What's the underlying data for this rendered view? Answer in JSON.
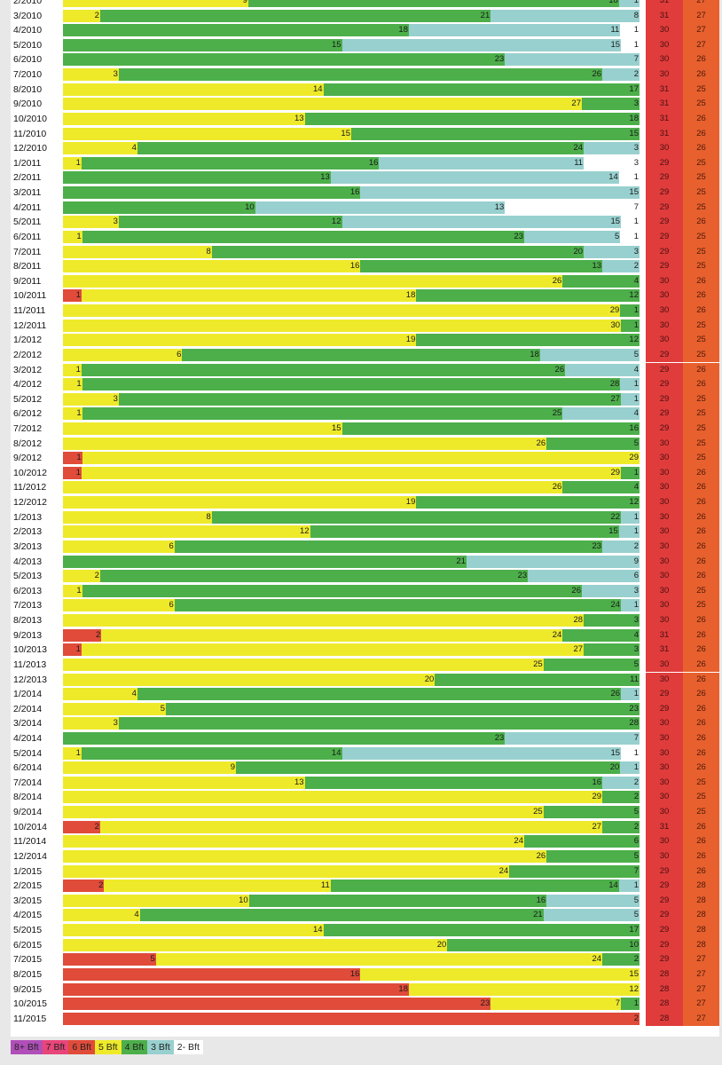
{
  "chart_data": {
    "type": "bar",
    "stacked": true,
    "orientation": "horizontal",
    "segment_order": [
      "6 Bft",
      "5 Bft",
      "4 Bft",
      "3 Bft",
      "2- Bft"
    ],
    "colors": {
      "8+ Bft": "#b04fb8",
      "7 Bft": "#e8457a",
      "6 Bft": "#e04b3a",
      "5 Bft": "#eeea2a",
      "4 Bft": "#4caf4a",
      "3 Bft": "#98d0cf",
      "2- Bft": "#ffffff",
      "col_water": "#e03c3c",
      "col_air": "#e8602e"
    },
    "legend": [
      "8+ Bft",
      "7 Bft",
      "6 Bft",
      "5 Bft",
      "4 Bft",
      "3 Bft",
      "2- Bft"
    ],
    "rows": [
      {
        "label": "2/2010",
        "days": [
          0,
          9,
          18,
          1,
          0
        ],
        "v1": "31",
        "v2": "27"
      },
      {
        "label": "3/2010",
        "days": [
          0,
          2,
          21,
          8,
          0
        ],
        "v1": "31",
        "v2": "27"
      },
      {
        "label": "4/2010",
        "days": [
          0,
          0,
          18,
          11,
          1
        ],
        "v1": "30",
        "v2": "27"
      },
      {
        "label": "5/2010",
        "days": [
          0,
          0,
          15,
          15,
          1
        ],
        "v1": "30",
        "v2": "27"
      },
      {
        "label": "6/2010",
        "days": [
          0,
          0,
          23,
          7,
          0
        ],
        "v1": "30",
        "v2": "26"
      },
      {
        "label": "7/2010",
        "days": [
          0,
          3,
          26,
          2,
          0
        ],
        "v1": "30",
        "v2": "26"
      },
      {
        "label": "8/2010",
        "days": [
          0,
          14,
          17,
          0,
          0
        ],
        "v1": "31",
        "v2": "25"
      },
      {
        "label": "9/2010",
        "days": [
          0,
          27,
          3,
          0,
          0
        ],
        "v1": "31",
        "v2": "25"
      },
      {
        "label": "10/2010",
        "days": [
          0,
          13,
          18,
          0,
          0
        ],
        "v1": "31",
        "v2": "26"
      },
      {
        "label": "11/2010",
        "days": [
          0,
          15,
          15,
          0,
          0
        ],
        "v1": "31",
        "v2": "26"
      },
      {
        "label": "12/2010",
        "days": [
          0,
          4,
          24,
          3,
          0
        ],
        "v1": "30",
        "v2": "26"
      },
      {
        "label": "1/2011",
        "days": [
          0,
          1,
          16,
          11,
          3
        ],
        "v1": "29",
        "v2": "25"
      },
      {
        "label": "2/2011",
        "days": [
          0,
          0,
          13,
          14,
          1
        ],
        "v1": "29",
        "v2": "25"
      },
      {
        "label": "3/2011",
        "days": [
          0,
          0,
          16,
          15,
          0
        ],
        "v1": "29",
        "v2": "25"
      },
      {
        "label": "4/2011",
        "days": [
          0,
          0,
          10,
          13,
          7
        ],
        "v1": "29",
        "v2": "25"
      },
      {
        "label": "5/2011",
        "days": [
          0,
          3,
          12,
          15,
          1
        ],
        "v1": "29",
        "v2": "26"
      },
      {
        "label": "6/2011",
        "days": [
          0,
          1,
          23,
          5,
          1
        ],
        "v1": "29",
        "v2": "25"
      },
      {
        "label": "7/2011",
        "days": [
          0,
          8,
          20,
          3,
          0
        ],
        "v1": "29",
        "v2": "25"
      },
      {
        "label": "8/2011",
        "days": [
          0,
          16,
          13,
          2,
          0
        ],
        "v1": "29",
        "v2": "25"
      },
      {
        "label": "9/2011",
        "days": [
          0,
          26,
          4,
          0,
          0
        ],
        "v1": "30",
        "v2": "26"
      },
      {
        "label": "10/2011",
        "days": [
          1,
          18,
          12,
          0,
          0
        ],
        "v1": "30",
        "v2": "26"
      },
      {
        "label": "11/2011",
        "days": [
          0,
          29,
          1,
          0,
          0
        ],
        "v1": "30",
        "v2": "26"
      },
      {
        "label": "12/2011",
        "days": [
          0,
          30,
          1,
          0,
          0
        ],
        "v1": "30",
        "v2": "25"
      },
      {
        "label": "1/2012",
        "days": [
          0,
          19,
          12,
          0,
          0
        ],
        "v1": "30",
        "v2": "25"
      },
      {
        "label": "2/2012",
        "days": [
          0,
          6,
          18,
          5,
          0
        ],
        "v1": "29",
        "v2": "25"
      },
      {
        "label": "3/2012",
        "days": [
          0,
          1,
          26,
          4,
          0
        ],
        "v1": "29",
        "v2": "26"
      },
      {
        "label": "4/2012",
        "days": [
          0,
          1,
          28,
          1,
          0
        ],
        "v1": "29",
        "v2": "26"
      },
      {
        "label": "5/2012",
        "days": [
          0,
          3,
          27,
          1,
          0
        ],
        "v1": "29",
        "v2": "25"
      },
      {
        "label": "6/2012",
        "days": [
          0,
          1,
          25,
          4,
          0
        ],
        "v1": "29",
        "v2": "25"
      },
      {
        "label": "7/2012",
        "days": [
          0,
          15,
          16,
          0,
          0
        ],
        "v1": "29",
        "v2": "25"
      },
      {
        "label": "8/2012",
        "days": [
          0,
          26,
          5,
          0,
          0
        ],
        "v1": "30",
        "v2": "25"
      },
      {
        "label": "9/2012",
        "days": [
          1,
          29,
          0,
          0,
          0
        ],
        "v1": "30",
        "v2": "25"
      },
      {
        "label": "10/2012",
        "days": [
          1,
          29,
          1,
          0,
          0
        ],
        "v1": "30",
        "v2": "26"
      },
      {
        "label": "11/2012",
        "days": [
          0,
          26,
          4,
          0,
          0
        ],
        "v1": "30",
        "v2": "26"
      },
      {
        "label": "12/2012",
        "days": [
          0,
          19,
          12,
          0,
          0
        ],
        "v1": "30",
        "v2": "26"
      },
      {
        "label": "1/2013",
        "days": [
          0,
          8,
          22,
          1,
          0
        ],
        "v1": "30",
        "v2": "26"
      },
      {
        "label": "2/2013",
        "days": [
          0,
          12,
          15,
          1,
          0
        ],
        "v1": "30",
        "v2": "26"
      },
      {
        "label": "3/2013",
        "days": [
          0,
          6,
          23,
          2,
          0
        ],
        "v1": "30",
        "v2": "26"
      },
      {
        "label": "4/2013",
        "days": [
          0,
          0,
          21,
          9,
          0
        ],
        "v1": "30",
        "v2": "26"
      },
      {
        "label": "5/2013",
        "days": [
          0,
          2,
          23,
          6,
          0
        ],
        "v1": "30",
        "v2": "26"
      },
      {
        "label": "6/2013",
        "days": [
          0,
          1,
          26,
          3,
          0
        ],
        "v1": "30",
        "v2": "25"
      },
      {
        "label": "7/2013",
        "days": [
          0,
          6,
          24,
          1,
          0
        ],
        "v1": "30",
        "v2": "25"
      },
      {
        "label": "8/2013",
        "days": [
          0,
          28,
          3,
          0,
          0
        ],
        "v1": "30",
        "v2": "26"
      },
      {
        "label": "9/2013",
        "days": [
          2,
          24,
          4,
          0,
          0
        ],
        "v1": "31",
        "v2": "26"
      },
      {
        "label": "10/2013",
        "days": [
          1,
          27,
          3,
          0,
          0
        ],
        "v1": "31",
        "v2": "26"
      },
      {
        "label": "11/2013",
        "days": [
          0,
          25,
          5,
          0,
          0
        ],
        "v1": "30",
        "v2": "26"
      },
      {
        "label": "12/2013",
        "days": [
          0,
          20,
          11,
          0,
          0
        ],
        "v1": "30",
        "v2": "26"
      },
      {
        "label": "1/2014",
        "days": [
          0,
          4,
          26,
          1,
          0
        ],
        "v1": "29",
        "v2": "26"
      },
      {
        "label": "2/2014",
        "days": [
          0,
          5,
          23,
          0,
          0
        ],
        "v1": "29",
        "v2": "26"
      },
      {
        "label": "3/2014",
        "days": [
          0,
          3,
          28,
          0,
          0
        ],
        "v1": "30",
        "v2": "26"
      },
      {
        "label": "4/2014",
        "days": [
          0,
          0,
          23,
          7,
          0
        ],
        "v1": "30",
        "v2": "26"
      },
      {
        "label": "5/2014",
        "days": [
          0,
          1,
          14,
          15,
          1
        ],
        "v1": "30",
        "v2": "26"
      },
      {
        "label": "6/2014",
        "days": [
          0,
          9,
          20,
          1,
          0
        ],
        "v1": "30",
        "v2": "26"
      },
      {
        "label": "7/2014",
        "days": [
          0,
          13,
          16,
          2,
          0
        ],
        "v1": "30",
        "v2": "25"
      },
      {
        "label": "8/2014",
        "days": [
          0,
          29,
          2,
          0,
          0
        ],
        "v1": "30",
        "v2": "25"
      },
      {
        "label": "9/2014",
        "days": [
          0,
          25,
          5,
          0,
          0
        ],
        "v1": "30",
        "v2": "25"
      },
      {
        "label": "10/2014",
        "days": [
          2,
          27,
          2,
          0,
          0
        ],
        "v1": "31",
        "v2": "26"
      },
      {
        "label": "11/2014",
        "days": [
          0,
          24,
          6,
          0,
          0
        ],
        "v1": "30",
        "v2": "26"
      },
      {
        "label": "12/2014",
        "days": [
          0,
          26,
          5,
          0,
          0
        ],
        "v1": "30",
        "v2": "26"
      },
      {
        "label": "1/2015",
        "days": [
          0,
          24,
          7,
          0,
          0
        ],
        "v1": "29",
        "v2": "26"
      },
      {
        "label": "2/2015",
        "days": [
          2,
          11,
          14,
          1,
          0
        ],
        "v1": "29",
        "v2": "28"
      },
      {
        "label": "3/2015",
        "days": [
          0,
          10,
          16,
          5,
          0
        ],
        "v1": "29",
        "v2": "28"
      },
      {
        "label": "4/2015",
        "days": [
          0,
          4,
          21,
          5,
          0
        ],
        "v1": "29",
        "v2": "28"
      },
      {
        "label": "5/2015",
        "days": [
          0,
          14,
          17,
          0,
          0
        ],
        "v1": "29",
        "v2": "28"
      },
      {
        "label": "6/2015",
        "days": [
          0,
          20,
          10,
          0,
          0
        ],
        "v1": "29",
        "v2": "28"
      },
      {
        "label": "7/2015",
        "days": [
          5,
          24,
          2,
          0,
          0
        ],
        "v1": "29",
        "v2": "27"
      },
      {
        "label": "8/2015",
        "days": [
          16,
          15,
          0,
          0,
          0
        ],
        "v1": "28",
        "v2": "27"
      },
      {
        "label": "9/2015",
        "days": [
          18,
          12,
          0,
          0,
          0
        ],
        "v1": "28",
        "v2": "27"
      },
      {
        "label": "10/2015",
        "days": [
          23,
          7,
          1,
          0,
          0
        ],
        "v1": "28",
        "v2": "27"
      },
      {
        "label": "11/2015",
        "days": [
          2,
          0,
          0,
          0,
          0
        ],
        "v1": "28",
        "v2": "27"
      }
    ]
  }
}
